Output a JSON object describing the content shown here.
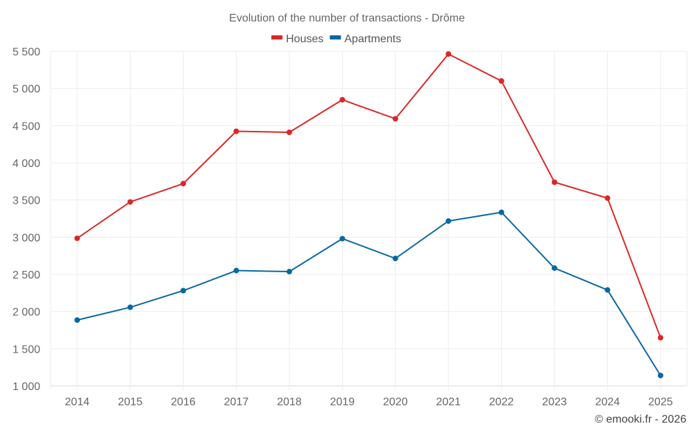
{
  "chart_data": {
    "type": "line",
    "title": "Evolution of the number of transactions - Drôme",
    "xlabel": "",
    "ylabel": "",
    "categories": [
      "2014",
      "2015",
      "2016",
      "2017",
      "2018",
      "2019",
      "2020",
      "2021",
      "2022",
      "2023",
      "2024",
      "2025"
    ],
    "series": [
      {
        "name": "Houses",
        "color": "#dc2626",
        "values": [
          2985,
          3474,
          3720,
          4424,
          4410,
          4848,
          4592,
          5463,
          5100,
          3739,
          3525,
          1648
        ]
      },
      {
        "name": "Apartments",
        "color": "#0868a0",
        "values": [
          1885,
          2057,
          2281,
          2551,
          2537,
          2980,
          2714,
          3217,
          3334,
          2584,
          2290,
          1140
        ]
      }
    ],
    "ylim": [
      1000,
      5500
    ],
    "yticks": [
      1000,
      1500,
      2000,
      2500,
      3000,
      3500,
      4000,
      4500,
      5000,
      5500
    ],
    "ytick_labels": [
      "1 000",
      "1 500",
      "2 000",
      "2 500",
      "3 000",
      "3 500",
      "4 000",
      "4 500",
      "5 000",
      "5 500"
    ],
    "grid": true,
    "legend": "top-center",
    "credit": "© emooki.fr - 2026"
  }
}
